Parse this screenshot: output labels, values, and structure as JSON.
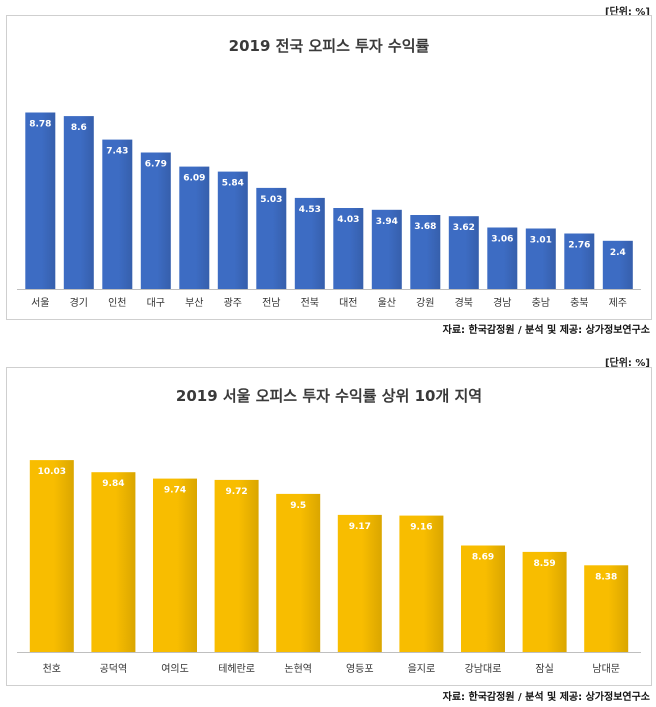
{
  "chart_data": [
    {
      "type": "bar",
      "unit_label": "[단위: %]",
      "title": "2019 전국 오피스 투자 수익률",
      "categories": [
        "서울",
        "경기",
        "인천",
        "대구",
        "부산",
        "광주",
        "전남",
        "전북",
        "대전",
        "울산",
        "강원",
        "경북",
        "경남",
        "충남",
        "충북",
        "제주"
      ],
      "values": [
        8.78,
        8.6,
        7.43,
        6.79,
        6.09,
        5.84,
        5.03,
        4.53,
        4.03,
        3.94,
        3.68,
        3.62,
        3.06,
        3.01,
        2.76,
        2.4
      ],
      "value_labels": [
        "8.78",
        "8.6",
        "7.43",
        "6.79",
        "6.09",
        "5.84",
        "5.03",
        "4.53",
        "4.03",
        "3.94",
        "3.68",
        "3.62",
        "3.06",
        "3.01",
        "2.76",
        "2.4"
      ],
      "ylim": [
        0,
        9.6
      ],
      "color": "#3d6cc3",
      "grid": false,
      "source": "자료: 한국감정원 / 분석 및 제공: 상가정보연구소"
    },
    {
      "type": "bar",
      "unit_label": "[단위: %]",
      "title": "2019 서울 오피스 투자 수익률 상위 10개 지역",
      "categories": [
        "천호",
        "공덕역",
        "여의도",
        "테헤란로",
        "논현역",
        "영등포",
        "을지로",
        "강남대로",
        "잠실",
        "남대문"
      ],
      "values": [
        10.03,
        9.84,
        9.74,
        9.72,
        9.5,
        9.17,
        9.16,
        8.69,
        8.59,
        8.38
      ],
      "value_labels": [
        "10.03",
        "9.84",
        "9.74",
        "9.72",
        "9.5",
        "9.17",
        "9.16",
        "8.69",
        "8.59",
        "8.38"
      ],
      "ylim": [
        7.02,
        10.11
      ],
      "color": "#f8bd00",
      "grid": false,
      "source": "자료: 한국감정원 / 분석 및 제공: 상가정보연구소"
    }
  ]
}
